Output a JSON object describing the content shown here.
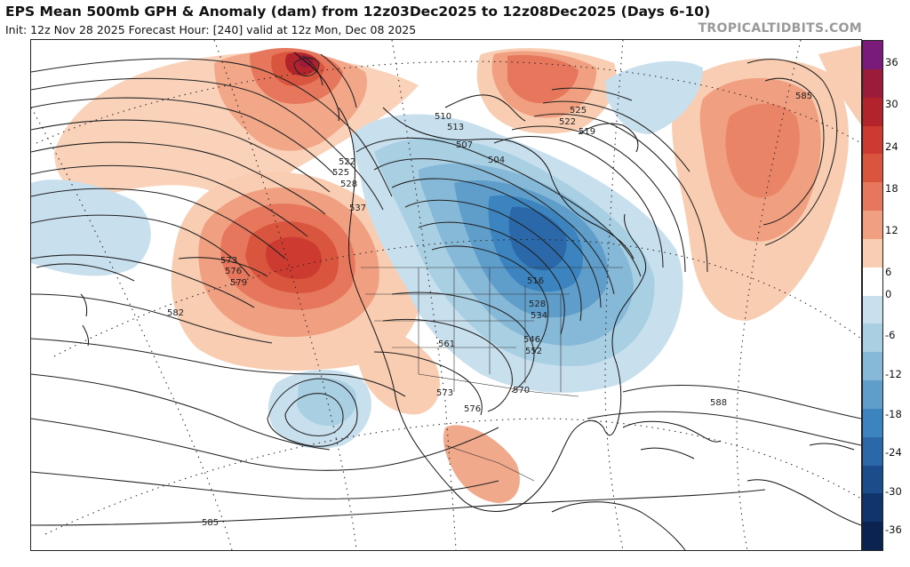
{
  "title": "EPS Mean 500mb GPH & Anomaly (dam) from 12z03Dec2025 to 12z08Dec2025 (Days 6-10)",
  "subtitle": "Init: 12z Nov 28 2025   Forecast Hour: [240]   valid at 12z Mon, Dec 08 2025",
  "credit": "TROPICALTIDBITS.COM",
  "colorbar": {
    "labels": [
      "36",
      "30",
      "24",
      "18",
      "12",
      "6",
      "0",
      "-6",
      "-12",
      "-18",
      "-24",
      "-30",
      "-36"
    ],
    "colors": [
      "#7a1a7a",
      "#9b1b3a",
      "#b3232b",
      "#cc3a30",
      "#d9553e",
      "#e6775c",
      "#f0a080",
      "#f9cdb2",
      "#ffffff",
      "#c8e0ee",
      "#a9cfe3",
      "#86b8d8",
      "#5f9ecb",
      "#3b84bf",
      "#2a68a9",
      "#1b4d8c",
      "#10356c",
      "#0a2350"
    ]
  },
  "contour_labels": [
    "510",
    "513",
    "507",
    "504",
    "516",
    "519",
    "522",
    "525",
    "528",
    "534",
    "537",
    "546",
    "552",
    "561",
    "570",
    "573",
    "576",
    "579",
    "582",
    "585",
    "588"
  ]
}
